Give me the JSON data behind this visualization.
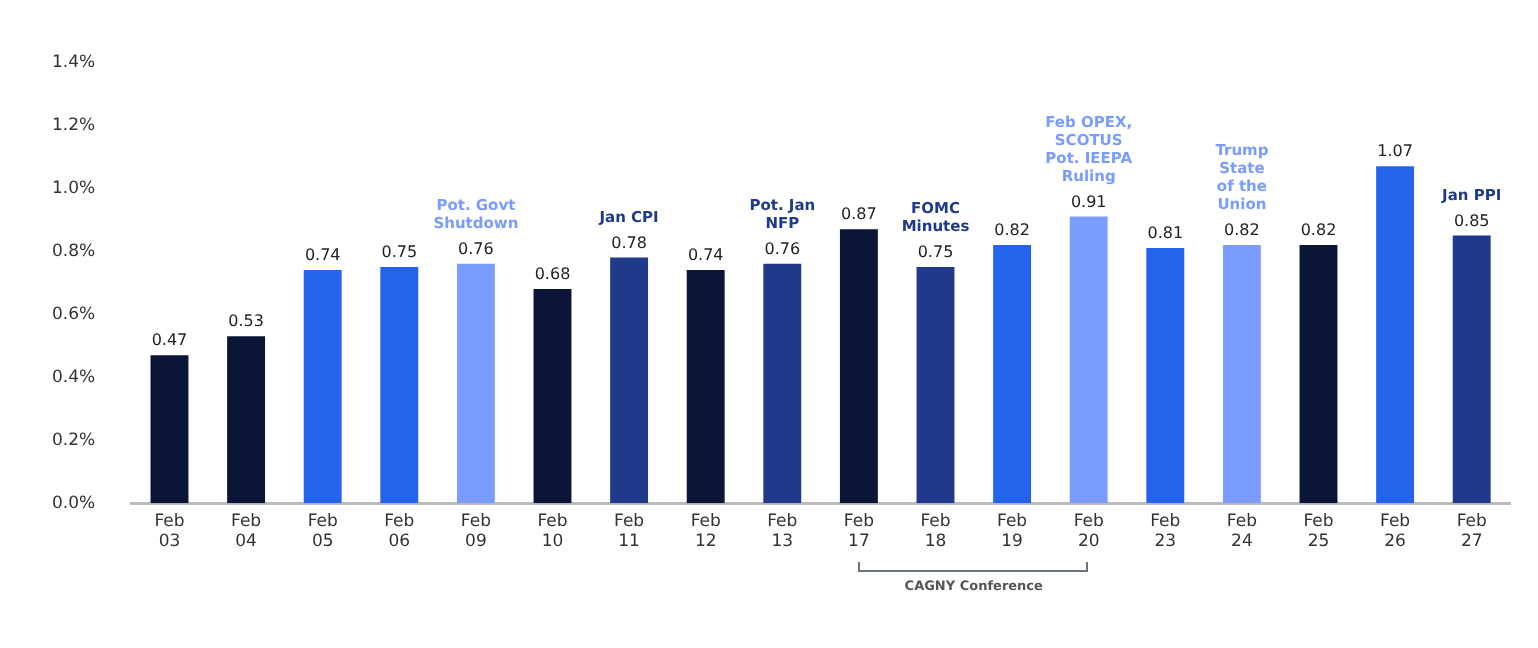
{
  "chart_data": {
    "type": "bar",
    "categories": [
      "Feb 03",
      "Feb 04",
      "Feb 05",
      "Feb 06",
      "Feb 09",
      "Feb 10",
      "Feb 11",
      "Feb 12",
      "Feb 13",
      "Feb 17",
      "Feb 18",
      "Feb 19",
      "Feb 20",
      "Feb 23",
      "Feb 24",
      "Feb 25",
      "Feb 26",
      "Feb 27"
    ],
    "values": [
      0.47,
      0.53,
      0.74,
      0.75,
      0.76,
      0.68,
      0.78,
      0.74,
      0.76,
      0.87,
      0.75,
      0.82,
      0.91,
      0.81,
      0.82,
      0.82,
      1.07,
      0.85
    ],
    "colors": [
      "#0b1538",
      "#0b1538",
      "#2563eb",
      "#2563eb",
      "#7b9cff",
      "#0b1538",
      "#1f3a8a",
      "#0b1538",
      "#1f3a8a",
      "#0b1538",
      "#1f3a8a",
      "#2563eb",
      "#7b9cff",
      "#2563eb",
      "#7b9cff",
      "#0b1538",
      "#2563eb",
      "#1f3a8a"
    ],
    "ylim": [
      0,
      1.4
    ],
    "yticks": [
      {
        "value": 0,
        "label": "0.0%"
      },
      {
        "value": 0.2,
        "label": "0.2%"
      },
      {
        "value": 0.4,
        "label": "0.4%"
      },
      {
        "value": 0.6,
        "label": "0.6%"
      },
      {
        "value": 0.8,
        "label": "0.8%"
      },
      {
        "value": 1.0,
        "label": "1.0%"
      },
      {
        "value": 1.2,
        "label": "1.2%"
      },
      {
        "value": 1.4,
        "label": "1.4%"
      }
    ],
    "data_labels": true,
    "grid": false,
    "legend": false,
    "annotations": [
      {
        "text": "Pot. Govt\nShutdown",
        "x": "Feb 09",
        "y": 0.76
      },
      {
        "text": "Jan CPI",
        "x": "Feb 11",
        "y": 0.78
      },
      {
        "text": "Pot. Jan\nNFP",
        "x": "Feb 13",
        "y": 0.76
      },
      {
        "text": "FOMC\nMinutes",
        "x": "Feb 18",
        "y": 0.75
      },
      {
        "text": "Feb OPEX,\nSCOTUS\nPot. IEEPA\nRuling",
        "x": "Feb 20",
        "y": 0.91
      },
      {
        "text": "Trump\nState\nof the\nUnion",
        "x": "Feb 24",
        "y": 0.82
      },
      {
        "text": "Jan PPI",
        "x": "Feb 27",
        "y": 0.85
      },
      "CAGNY Conference"
    ]
  }
}
